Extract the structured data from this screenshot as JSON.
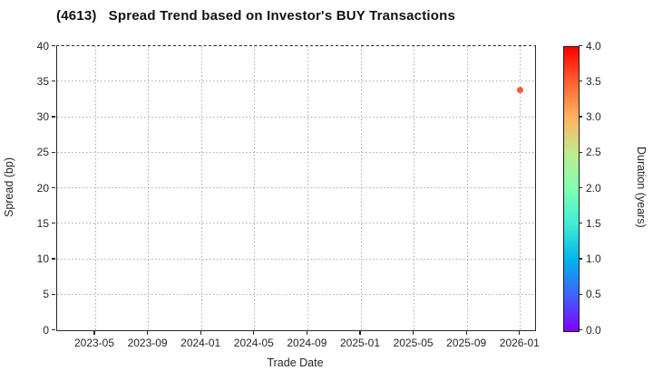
{
  "title": "(4613)   Spread Trend based on Investor's BUY Transactions",
  "colors": {
    "grid": "#ababab",
    "spine": "#262626",
    "text": "#262626",
    "background": "#ffffff"
  },
  "chart_data": {
    "type": "scatter",
    "title": "(4613)   Spread Trend based on Investor's BUY Transactions",
    "xlabel": "Trade Date",
    "ylabel": "Spread (bp)",
    "x_tick_labels": [
      "2023-05",
      "2023-09",
      "2024-01",
      "2024-05",
      "2024-09",
      "2025-01",
      "2025-05",
      "2025-09",
      "2026-01"
    ],
    "x_tick_interval_months": 4,
    "y_ticks": [
      0,
      5,
      10,
      15,
      20,
      25,
      30,
      35,
      40
    ],
    "ylim": [
      0,
      40
    ],
    "grid": true,
    "legend": "none",
    "colorbar": {
      "label": "Duration (years)",
      "ticks": [
        "0.0",
        "0.5",
        "1.0",
        "1.5",
        "2.0",
        "2.5",
        "3.0",
        "3.5",
        "4.0"
      ],
      "range": [
        0,
        4
      ],
      "colormap": "rainbow",
      "gradient_stops_bottom_to_top": [
        "#8000ff",
        "#4062fa",
        "#00b4ec",
        "#40ecd4",
        "#80ffb4",
        "#bfec8e",
        "#ffb462",
        "#ff6232",
        "#ff0000"
      ]
    },
    "points": [
      {
        "trade_date": "2026-01",
        "spread_bp": 33.7,
        "duration_years": 3.5,
        "color": "#f25c33"
      }
    ]
  }
}
